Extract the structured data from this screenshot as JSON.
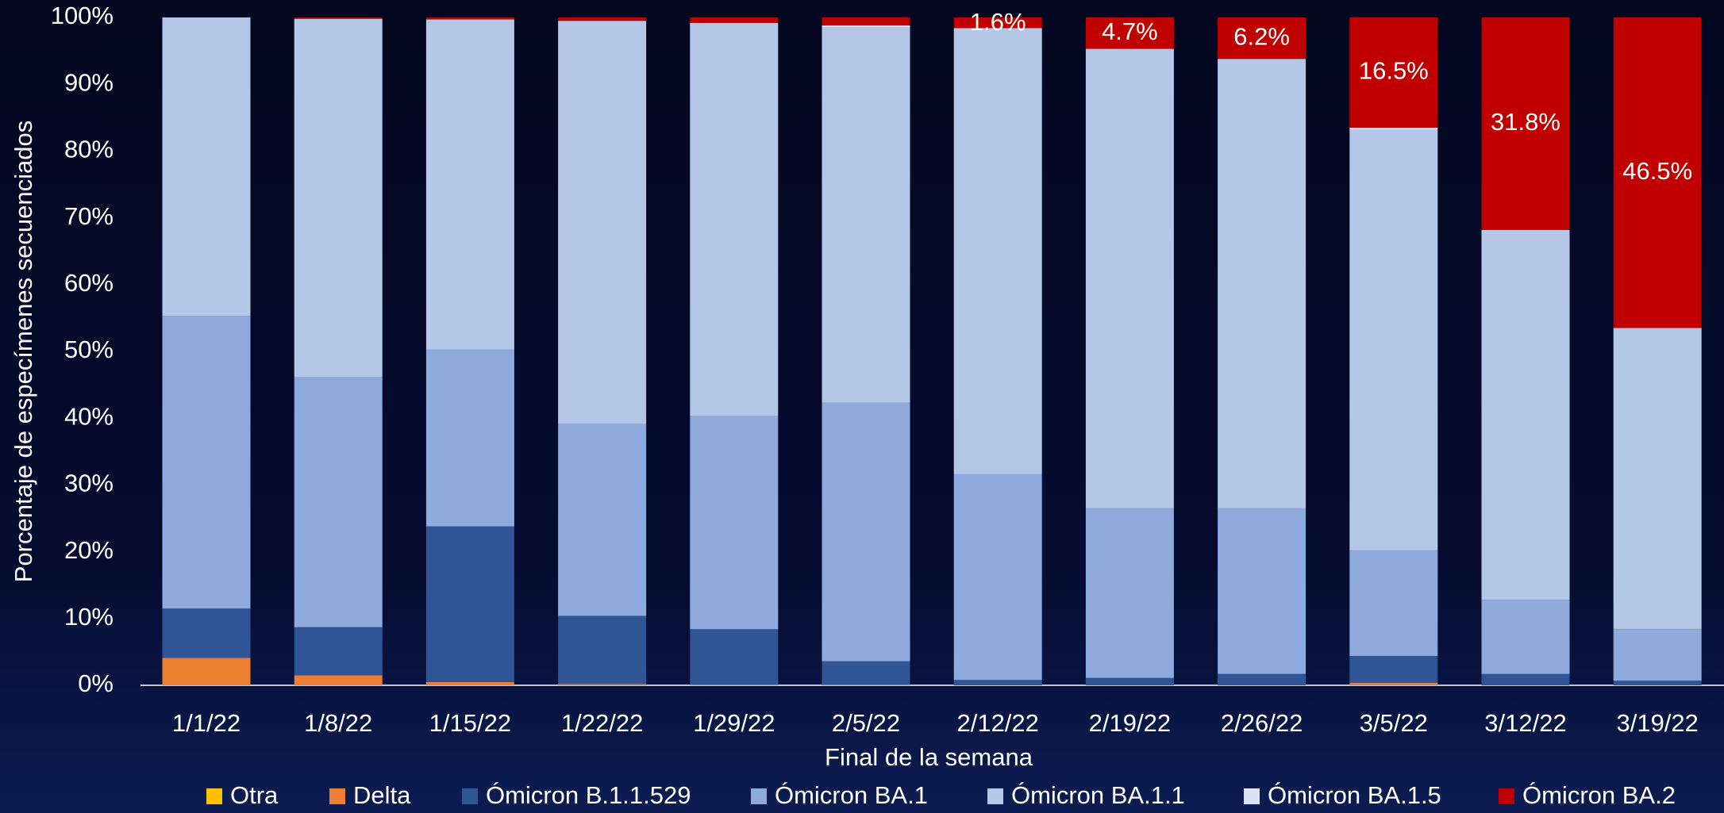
{
  "chart_data": {
    "type": "stacked_bar",
    "x_label": "Final de la semana",
    "y_label": "Porcentaje de especímenes secuenciados",
    "categories": [
      "1/1/22",
      "1/8/22",
      "1/15/22",
      "1/22/22",
      "1/29/22",
      "2/5/22",
      "2/12/22",
      "2/19/22",
      "2/26/22",
      "3/5/22",
      "3/12/22",
      "3/19/22"
    ],
    "series": [
      {
        "name": "Otra",
        "color": "#ffc000",
        "values": [
          0,
          0,
          0,
          0,
          0,
          0,
          0,
          0,
          0,
          0,
          0,
          0
        ]
      },
      {
        "name": "Delta",
        "color": "#ed7d31",
        "values": [
          4.1,
          1.5,
          0.5,
          0.2,
          0.1,
          0.1,
          0,
          0,
          0,
          0.4,
          0,
          0
        ]
      },
      {
        "name": "Ómicron B.1.1.529",
        "color": "#2f5597",
        "values": [
          7.4,
          7.2,
          23.3,
          10.2,
          8.3,
          3.5,
          0.8,
          1.1,
          1.7,
          4.0,
          1.7,
          0.7
        ]
      },
      {
        "name": "Ómicron BA.1",
        "color": "#8faadc",
        "values": [
          43.8,
          37.5,
          26.5,
          28.7,
          31.9,
          38.7,
          30.8,
          25.4,
          24.8,
          15.8,
          11.1,
          7.7
        ]
      },
      {
        "name": "Ómicron BA.1.1",
        "color": "#b4c7e7",
        "values": [
          44.7,
          53.6,
          49.4,
          60.4,
          58.9,
          56.2,
          66.8,
          68.8,
          67.3,
          63.0,
          55.4,
          45.1
        ]
      },
      {
        "name": "Ómicron BA.1.5",
        "color": "#dae3f3",
        "values": [
          0,
          0,
          0,
          0,
          0,
          0.3,
          0,
          0,
          0,
          0.3,
          0,
          0
        ]
      },
      {
        "name": "Ómicron BA.2",
        "color": "#c00000",
        "values": [
          0,
          0.2,
          0.3,
          0.5,
          0.8,
          1.2,
          1.6,
          4.7,
          6.2,
          16.5,
          31.8,
          46.5
        ],
        "value_labels": [
          null,
          null,
          null,
          null,
          null,
          null,
          "1.6%",
          "4.7%",
          "6.2%",
          "16.5%",
          "31.8%",
          "46.5%"
        ]
      }
    ],
    "ylim": [
      0,
      100
    ],
    "yticks": [
      {
        "value": 0,
        "label": "0%"
      },
      {
        "value": 10,
        "label": "10%"
      },
      {
        "value": 20,
        "label": "20%"
      },
      {
        "value": 30,
        "label": "30%"
      },
      {
        "value": 40,
        "label": "40%"
      },
      {
        "value": 50,
        "label": "50%"
      },
      {
        "value": 60,
        "label": "60%"
      },
      {
        "value": 70,
        "label": "70%"
      },
      {
        "value": 80,
        "label": "80%"
      },
      {
        "value": 90,
        "label": "90%"
      },
      {
        "value": 100,
        "label": "100%"
      }
    ],
    "legend": "bottom"
  }
}
